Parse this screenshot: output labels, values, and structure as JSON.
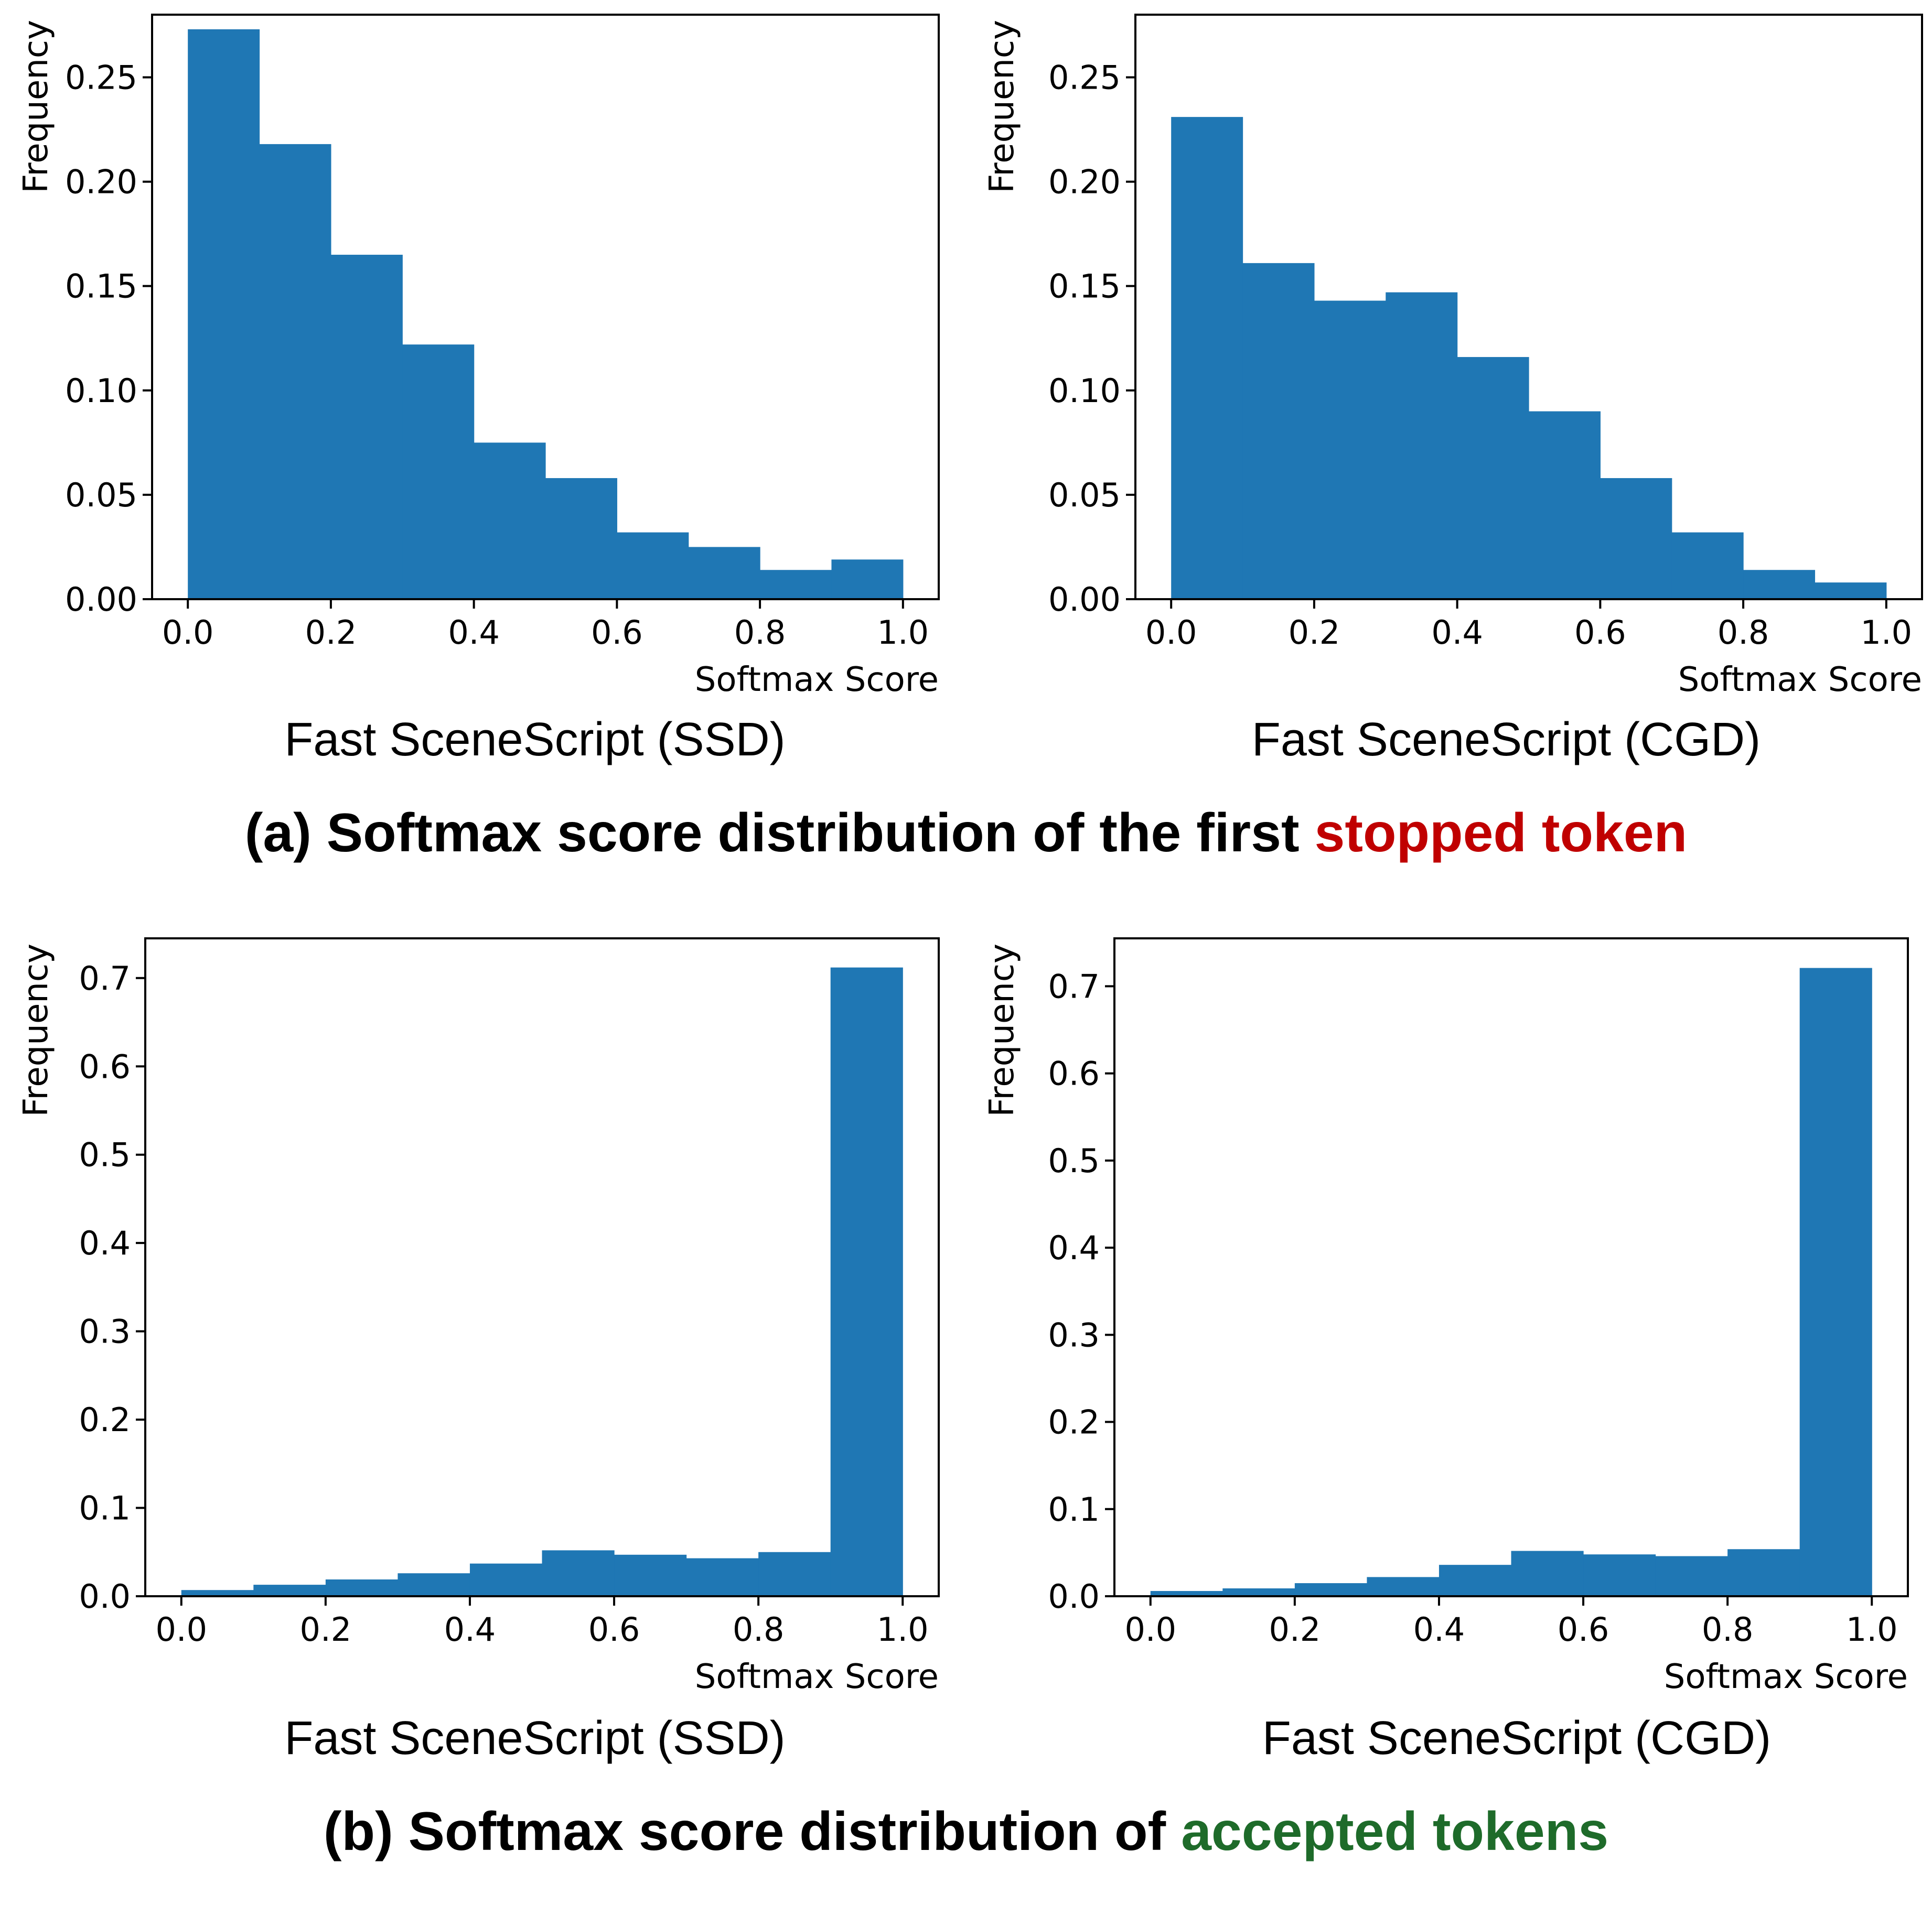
{
  "figure": {
    "caption_a": {
      "prefix": "(a) Softmax score distribution of the first ",
      "highlight": "stopped token",
      "highlight_color": "#c00000"
    },
    "caption_b": {
      "prefix": "(b) Softmax score distribution of ",
      "highlight": "accepted tokens",
      "highlight_color": "#1e6b2a"
    }
  },
  "chart_data": [
    {
      "type": "bar",
      "title": "Fast SceneScript (SSD)",
      "xlabel": "Softmax Score",
      "ylabel": "Frequency",
      "bar_color": "#1f77b4",
      "bin_edges": [
        0.0,
        0.1,
        0.2,
        0.3,
        0.4,
        0.5,
        0.6,
        0.7,
        0.8,
        0.9,
        1.0
      ],
      "values": [
        0.273,
        0.218,
        0.165,
        0.122,
        0.075,
        0.058,
        0.032,
        0.025,
        0.014,
        0.019
      ],
      "xlim": [
        -0.05,
        1.05
      ],
      "ylim": [
        0.0,
        0.28
      ],
      "xticks": [
        0.0,
        0.2,
        0.4,
        0.6,
        0.8,
        1.0
      ],
      "xtick_labels": [
        "0.0",
        "0.2",
        "0.4",
        "0.6",
        "0.8",
        "1.0"
      ],
      "yticks": [
        0.0,
        0.05,
        0.1,
        0.15,
        0.2,
        0.25
      ],
      "ytick_labels": [
        "0.00",
        "0.05",
        "0.10",
        "0.15",
        "0.20",
        "0.25"
      ]
    },
    {
      "type": "bar",
      "title": "Fast SceneScript (CGD)",
      "xlabel": "Softmax Score",
      "ylabel": "Frequency",
      "bar_color": "#1f77b4",
      "bin_edges": [
        0.0,
        0.1,
        0.2,
        0.3,
        0.4,
        0.5,
        0.6,
        0.7,
        0.8,
        0.9,
        1.0
      ],
      "values": [
        0.231,
        0.161,
        0.143,
        0.147,
        0.116,
        0.09,
        0.058,
        0.032,
        0.014,
        0.008
      ],
      "xlim": [
        -0.05,
        1.05
      ],
      "ylim": [
        0.0,
        0.28
      ],
      "xticks": [
        0.0,
        0.2,
        0.4,
        0.6,
        0.8,
        1.0
      ],
      "xtick_labels": [
        "0.0",
        "0.2",
        "0.4",
        "0.6",
        "0.8",
        "1.0"
      ],
      "yticks": [
        0.0,
        0.05,
        0.1,
        0.15,
        0.2,
        0.25
      ],
      "ytick_labels": [
        "0.00",
        "0.05",
        "0.10",
        "0.15",
        "0.20",
        "0.25"
      ]
    },
    {
      "type": "bar",
      "title": "Fast SceneScript (SSD)",
      "xlabel": "Softmax Score",
      "ylabel": "Frequency",
      "bar_color": "#1f77b4",
      "bin_edges": [
        0.0,
        0.1,
        0.2,
        0.3,
        0.4,
        0.5,
        0.6,
        0.7,
        0.8,
        0.9,
        1.0
      ],
      "values": [
        0.007,
        0.013,
        0.019,
        0.026,
        0.037,
        0.052,
        0.047,
        0.043,
        0.05,
        0.712
      ],
      "xlim": [
        -0.05,
        1.05
      ],
      "ylim": [
        0.0,
        0.745
      ],
      "xticks": [
        0.0,
        0.2,
        0.4,
        0.6,
        0.8,
        1.0
      ],
      "xtick_labels": [
        "0.0",
        "0.2",
        "0.4",
        "0.6",
        "0.8",
        "1.0"
      ],
      "yticks": [
        0.0,
        0.1,
        0.2,
        0.3,
        0.4,
        0.5,
        0.6,
        0.7
      ],
      "ytick_labels": [
        "0.0",
        "0.1",
        "0.2",
        "0.3",
        "0.4",
        "0.5",
        "0.6",
        "0.7"
      ]
    },
    {
      "type": "bar",
      "title": "Fast SceneScript (CGD)",
      "xlabel": "Softmax Score",
      "ylabel": "Frequency",
      "bar_color": "#1f77b4",
      "bin_edges": [
        0.0,
        0.1,
        0.2,
        0.3,
        0.4,
        0.5,
        0.6,
        0.7,
        0.8,
        0.9,
        1.0
      ],
      "values": [
        0.006,
        0.009,
        0.015,
        0.022,
        0.036,
        0.052,
        0.048,
        0.046,
        0.054,
        0.721
      ],
      "xlim": [
        -0.05,
        1.05
      ],
      "ylim": [
        0.0,
        0.755
      ],
      "xticks": [
        0.0,
        0.2,
        0.4,
        0.6,
        0.8,
        1.0
      ],
      "xtick_labels": [
        "0.0",
        "0.2",
        "0.4",
        "0.6",
        "0.8",
        "1.0"
      ],
      "yticks": [
        0.0,
        0.1,
        0.2,
        0.3,
        0.4,
        0.5,
        0.6,
        0.7
      ],
      "ytick_labels": [
        "0.0",
        "0.1",
        "0.2",
        "0.3",
        "0.4",
        "0.5",
        "0.6",
        "0.7"
      ]
    }
  ]
}
